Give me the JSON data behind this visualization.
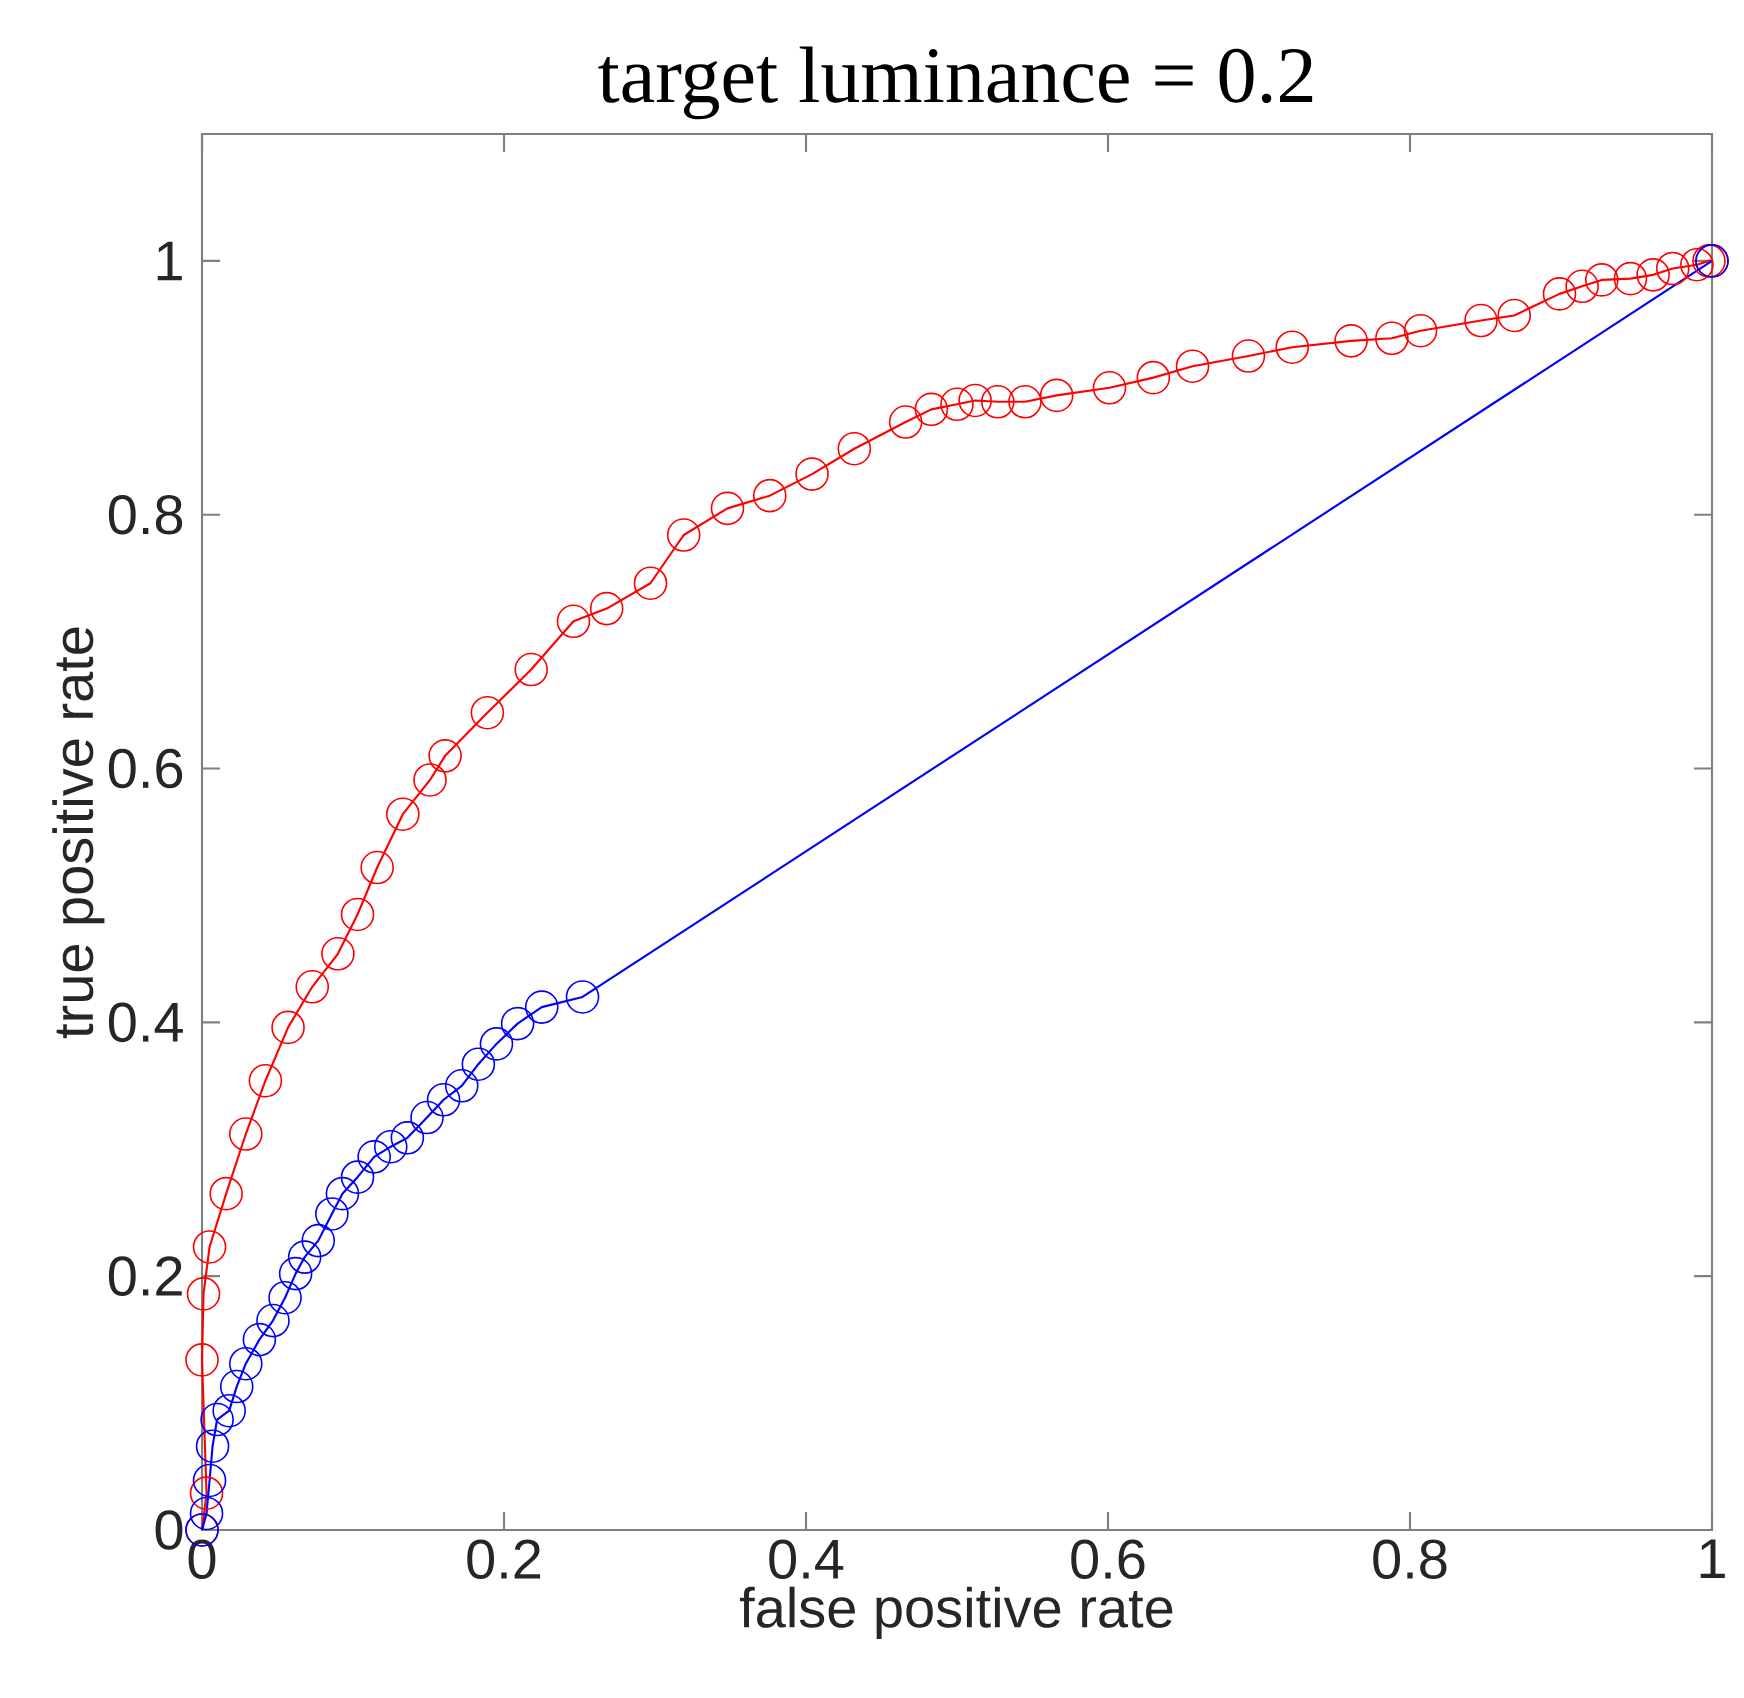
{
  "chart_data": {
    "type": "line",
    "title": "target luminance = 0.2",
    "xlabel": "false positive rate",
    "ylabel": "true positive rate",
    "xlim": [
      0,
      1
    ],
    "ylim": [
      0,
      1.1
    ],
    "xticks": [
      0,
      0.2,
      0.4,
      0.6,
      0.8,
      1
    ],
    "yticks": [
      0,
      0.2,
      0.4,
      0.6,
      0.8,
      1
    ],
    "grid": false,
    "marker": "circle",
    "line_style": "solid",
    "series": [
      {
        "color": "#ff0000",
        "x": [
          0,
          0.003,
          0,
          0.001,
          0.005,
          0.016,
          0.029,
          0.042,
          0.057,
          0.073,
          0.09,
          0.103,
          0.116,
          0.133,
          0.151,
          0.161,
          0.189,
          0.218,
          0.246,
          0.268,
          0.297,
          0.319,
          0.348,
          0.376,
          0.404,
          0.432,
          0.466,
          0.483,
          0.5,
          0.512,
          0.527,
          0.545,
          0.566,
          0.601,
          0.63,
          0.656,
          0.693,
          0.722,
          0.761,
          0.788,
          0.807,
          0.847,
          0.869,
          0.899,
          0.914,
          0.927,
          0.946,
          0.961,
          0.974,
          0.99,
          0.998,
          1
        ],
        "values": [
          0,
          0.029,
          0.134,
          0.186,
          0.223,
          0.265,
          0.312,
          0.354,
          0.396,
          0.428,
          0.454,
          0.485,
          0.522,
          0.564,
          0.591,
          0.61,
          0.644,
          0.678,
          0.716,
          0.726,
          0.746,
          0.784,
          0.805,
          0.815,
          0.832,
          0.852,
          0.873,
          0.883,
          0.887,
          0.89,
          0.889,
          0.889,
          0.894,
          0.9,
          0.908,
          0.917,
          0.925,
          0.932,
          0.937,
          0.939,
          0.945,
          0.953,
          0.957,
          0.974,
          0.98,
          0.985,
          0.986,
          0.989,
          0.994,
          0.997,
          1,
          1
        ]
      },
      {
        "color": "#0000ff",
        "x": [
          0,
          0.003,
          0.005,
          0.007,
          0.01,
          0.018,
          0.023,
          0.029,
          0.038,
          0.047,
          0.055,
          0.062,
          0.068,
          0.077,
          0.086,
          0.093,
          0.103,
          0.114,
          0.125,
          0.136,
          0.149,
          0.16,
          0.172,
          0.183,
          0.195,
          0.209,
          0.225,
          0.252,
          1
        ],
        "values": [
          0,
          0.013,
          0.039,
          0.066,
          0.087,
          0.094,
          0.113,
          0.131,
          0.15,
          0.165,
          0.183,
          0.202,
          0.215,
          0.228,
          0.249,
          0.265,
          0.278,
          0.294,
          0.302,
          0.309,
          0.325,
          0.339,
          0.35,
          0.367,
          0.383,
          0.399,
          0.412,
          0.42,
          1
        ]
      }
    ]
  }
}
